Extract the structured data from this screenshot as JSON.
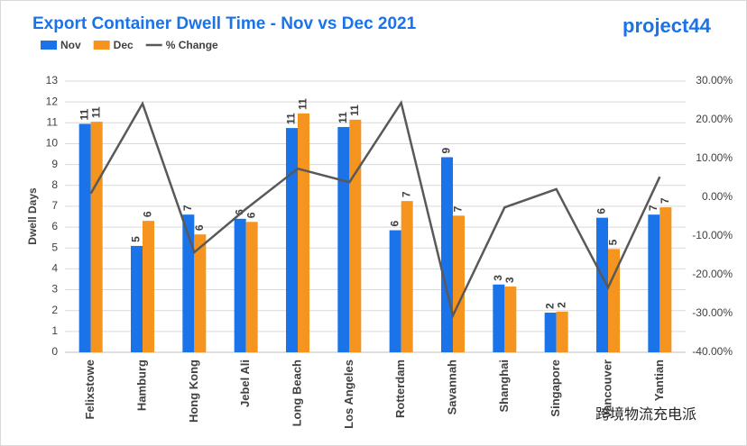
{
  "chart_data": {
    "type": "bar",
    "title": "Export Container Dwell Time - Nov vs Dec 2021",
    "logo": "project44",
    "watermark": "跨境物流充电派",
    "y_label": "Dwell Days",
    "categories": [
      "Felixstowe",
      "Hamburg",
      "Hong Kong",
      "Jebel Ali",
      "Long Beach",
      "Los Angeles",
      "Rotterdam",
      "Savannah",
      "Shanghai",
      "Singapore",
      "Vancouver",
      "Yantian"
    ],
    "series": [
      {
        "name": "Nov",
        "color": "#1a73e8",
        "values": [
          10.95,
          5.1,
          6.6,
          6.4,
          10.75,
          10.8,
          5.85,
          9.35,
          3.25,
          1.9,
          6.45,
          6.6
        ],
        "value_labels": [
          "11",
          "5",
          "7",
          "6",
          "11",
          "11",
          "6",
          "9",
          "3",
          "2",
          "6",
          "7"
        ]
      },
      {
        "name": "Dec",
        "color": "#f5951f",
        "values": [
          11.05,
          6.3,
          5.65,
          6.25,
          11.45,
          11.15,
          7.25,
          6.55,
          3.15,
          1.95,
          4.95,
          6.95
        ],
        "value_labels": [
          "11",
          "6",
          "6",
          "6",
          "11",
          "11",
          "7",
          "7",
          "3",
          "2",
          "5",
          "7"
        ]
      },
      {
        "name": "% Change",
        "color": "#595959",
        "type": "line",
        "axis": "y2",
        "values": [
          1,
          24.2,
          -14.2,
          -3,
          7.4,
          3.9,
          24.4,
          -30.5,
          -2.6,
          2.1,
          -23.3,
          5.3
        ]
      }
    ],
    "ylim": [
      0,
      13
    ],
    "yticks": [
      0,
      1,
      2,
      3,
      4,
      5,
      6,
      7,
      8,
      9,
      10,
      11,
      12,
      13
    ],
    "y2lim": [
      -40,
      30
    ],
    "y2ticks": [
      {
        "value": -40,
        "label": "-40.00%"
      },
      {
        "value": -30,
        "label": "-30.00%"
      },
      {
        "value": -20,
        "label": "-20.00%"
      },
      {
        "value": -10,
        "label": "-10.00%"
      },
      {
        "value": 0,
        "label": "0.00%"
      },
      {
        "value": 10,
        "label": "10.00%"
      },
      {
        "value": 20,
        "label": "20.00%"
      },
      {
        "value": 30,
        "label": "30.00%"
      }
    ],
    "grid": true,
    "legend": "top-left"
  }
}
